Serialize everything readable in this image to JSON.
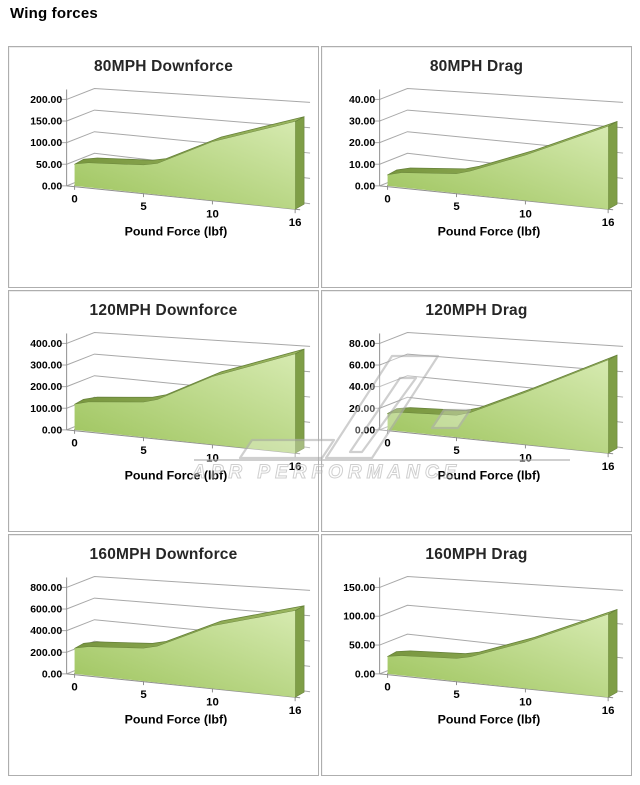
{
  "page": {
    "heading": "Wing forces"
  },
  "watermark": {
    "brand": "APR PERFORMANCE"
  },
  "colors": {
    "area_dark": "#9cc35b",
    "area_light": "#d6eab0",
    "band_dark": "#78963f",
    "band_light": "#9cb761",
    "band_edge": "#66813a",
    "side_face": "#7f9e47",
    "gridline": "#a8a8a8",
    "axis": "#8f8f8f",
    "panel_border": "#aeaeae",
    "watermark_gray": "#b0b0b0",
    "label_text": "#000000"
  },
  "chart_data": [
    {
      "type": "area",
      "title": "80MPH Downforce",
      "xlabel": "Pound Force (lbf)",
      "x": [
        0,
        1,
        5,
        6,
        10,
        16
      ],
      "values": [
        50,
        55,
        58,
        63,
        110,
        148
      ],
      "x_ticks": [
        0,
        5,
        10,
        16
      ],
      "xlim": [
        0,
        16
      ],
      "ylim": [
        0,
        200
      ],
      "y_tick_labels": [
        "0.00",
        "50.00",
        "100.00",
        "150.00",
        "200.00"
      ],
      "grid": true,
      "legend": false
    },
    {
      "type": "area",
      "title": "80MPH Drag",
      "xlabel": "Pound Force (lbf)",
      "x": [
        0,
        1,
        5,
        6,
        10,
        16
      ],
      "values": [
        5,
        6.5,
        8,
        9.5,
        17,
        28
      ],
      "x_ticks": [
        0,
        5,
        10,
        16
      ],
      "xlim": [
        0,
        16
      ],
      "ylim": [
        0,
        40
      ],
      "y_tick_labels": [
        "0.00",
        "10.00",
        "20.00",
        "30.00",
        "40.00"
      ],
      "grid": true,
      "legend": false
    },
    {
      "type": "area",
      "title": "120MPH Downforce",
      "xlabel": "Pound Force (lbf)",
      "x": [
        0,
        1,
        5,
        6,
        10,
        16
      ],
      "values": [
        118,
        132,
        145,
        158,
        255,
        335
      ],
      "x_ticks": [
        0,
        5,
        10,
        16
      ],
      "xlim": [
        0,
        16
      ],
      "ylim": [
        0,
        400
      ],
      "y_tick_labels": [
        "0.00",
        "100.00",
        "200.00",
        "300.00",
        "400.00"
      ],
      "grid": true,
      "legend": false
    },
    {
      "type": "area",
      "title": "120MPH Drag",
      "xlabel": "Pound Force (lbf)",
      "x": [
        0,
        1,
        5,
        6,
        10,
        16
      ],
      "values": [
        15,
        17,
        18,
        21,
        39,
        63
      ],
      "x_ticks": [
        0,
        5,
        10,
        16
      ],
      "xlim": [
        0,
        16
      ],
      "ylim": [
        0,
        80
      ],
      "y_tick_labels": [
        "0.00",
        "20.00",
        "40.00",
        "60.00",
        "80.00"
      ],
      "grid": true,
      "legend": false
    },
    {
      "type": "area",
      "title": "160MPH Downforce",
      "xlabel": "Pound Force (lbf)",
      "x": [
        0,
        1,
        5,
        6,
        10,
        16
      ],
      "values": [
        235,
        258,
        272,
        295,
        470,
        585
      ],
      "x_ticks": [
        0,
        5,
        10,
        16
      ],
      "xlim": [
        0,
        16
      ],
      "ylim": [
        0,
        800
      ],
      "y_tick_labels": [
        "0.00",
        "200.00",
        "400.00",
        "600.00",
        "800.00"
      ],
      "grid": true,
      "legend": false
    },
    {
      "type": "area",
      "title": "160MPH Drag",
      "xlabel": "Pound Force (lbf)",
      "x": [
        0,
        1,
        5,
        6,
        10,
        16
      ],
      "values": [
        30,
        33,
        35,
        39,
        65,
        105
      ],
      "x_ticks": [
        0,
        5,
        10,
        16
      ],
      "xlim": [
        0,
        16
      ],
      "ylim": [
        0,
        150
      ],
      "y_tick_labels": [
        "0.00",
        "50.00",
        "100.00",
        "150.00"
      ],
      "grid": true,
      "legend": false
    }
  ]
}
